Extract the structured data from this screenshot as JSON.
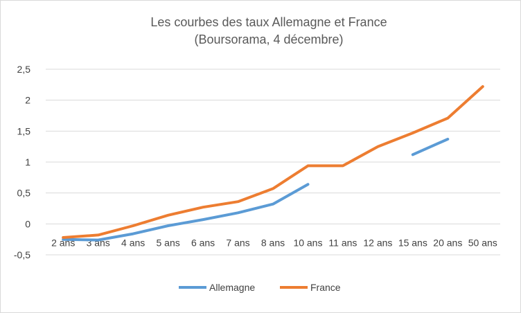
{
  "chart_data": {
    "type": "line",
    "title": "Les courbes des taux Allemagne et France",
    "subtitle": "(Boursorama, 4 décembre)",
    "categories": [
      "2 ans",
      "3 ans",
      "4 ans",
      "5 ans",
      "6 ans",
      "7 ans",
      "8 ans",
      "10 ans",
      "11 ans",
      "12 ans",
      "15 ans",
      "20 ans",
      "50 ans"
    ],
    "y_ticks": [
      "2,5",
      "2",
      "1,5",
      "1",
      "0,5",
      "0",
      "-0,5"
    ],
    "ylim": [
      -0.5,
      2.5
    ],
    "grid": true,
    "legend_position": "bottom",
    "series": [
      {
        "name": "Allemagne",
        "color": "#5b9bd5",
        "values": [
          -0.25,
          -0.26,
          -0.16,
          -0.03,
          0.07,
          0.18,
          0.32,
          0.64,
          null,
          null,
          1.12,
          1.37,
          null
        ]
      },
      {
        "name": "France",
        "color": "#ed7d31",
        "values": [
          -0.22,
          -0.18,
          -0.03,
          0.14,
          0.27,
          0.36,
          0.57,
          0.94,
          0.94,
          1.25,
          1.47,
          1.71,
          2.22
        ]
      }
    ]
  }
}
